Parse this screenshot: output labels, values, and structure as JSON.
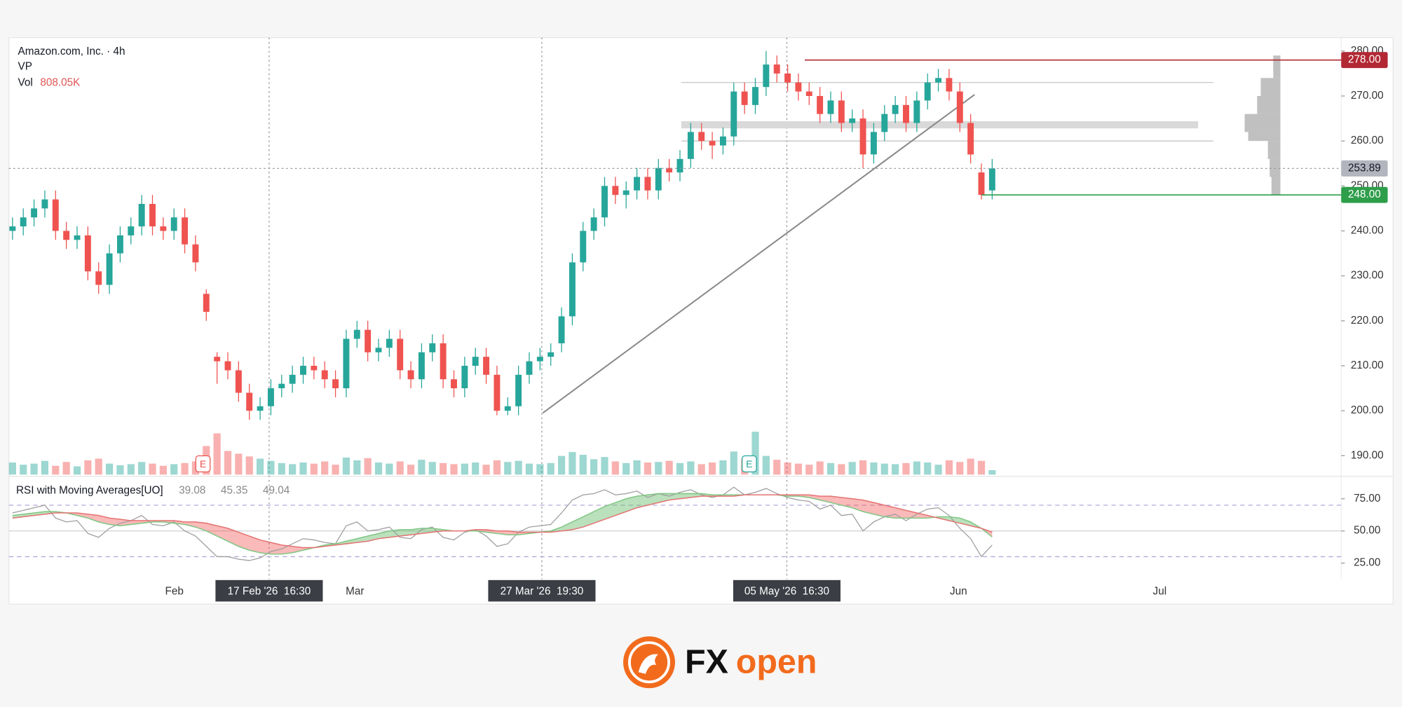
{
  "chart_data": [
    {
      "type": "candlestick",
      "title": "Amazon.com, Inc. · 4h",
      "indicator": "VP",
      "volume_name": "Vol",
      "volume_label": "808.05K",
      "open": [
        240,
        241,
        243,
        245,
        247,
        240,
        238,
        239,
        231,
        228,
        235,
        239,
        241,
        246,
        241,
        240,
        243,
        237,
        226,
        212,
        211,
        209,
        204,
        200,
        201,
        205,
        206,
        208,
        210,
        209,
        207,
        205,
        216,
        218,
        213,
        214,
        216,
        209,
        207,
        213,
        215,
        207,
        205,
        210,
        212,
        208,
        200,
        201,
        208,
        211,
        212,
        215,
        221,
        233,
        240,
        243,
        250,
        248,
        249,
        252,
        249,
        254,
        253,
        256,
        262,
        260,
        259,
        261,
        271,
        268,
        272,
        277,
        275,
        273,
        271,
        270,
        266,
        269,
        264,
        265,
        257,
        262,
        266,
        268,
        264,
        269,
        273,
        274,
        271,
        264,
        253,
        249
      ],
      "high": [
        243,
        245,
        247,
        249,
        249,
        242,
        241,
        241,
        233,
        237,
        241,
        243,
        248,
        248,
        243,
        245,
        245,
        239,
        227,
        213,
        213,
        211,
        206,
        203,
        207,
        208,
        210,
        212,
        212,
        211,
        209,
        218,
        220,
        220,
        216,
        218,
        218,
        211,
        215,
        217,
        217,
        209,
        212,
        214,
        214,
        210,
        203,
        210,
        213,
        214,
        215,
        223,
        235,
        242,
        245,
        252,
        252,
        251,
        254,
        254,
        256,
        256,
        258,
        264,
        264,
        262,
        263,
        273,
        273,
        274,
        280,
        279,
        277,
        275,
        273,
        272,
        271,
        271,
        267,
        267,
        264,
        268,
        270,
        270,
        271,
        275,
        276,
        276,
        273,
        266,
        255,
        256
      ],
      "low": [
        238,
        239,
        241,
        243,
        238,
        236,
        236,
        229,
        226,
        226,
        233,
        237,
        239,
        239,
        238,
        238,
        235,
        231,
        220,
        206,
        207,
        202,
        198,
        198,
        199,
        203,
        204,
        206,
        207,
        205,
        203,
        203,
        214,
        211,
        211,
        212,
        207,
        205,
        205,
        211,
        205,
        203,
        203,
        208,
        206,
        199,
        199,
        199,
        206,
        209,
        210,
        213,
        219,
        231,
        238,
        241,
        246,
        245,
        247,
        247,
        247,
        251,
        251,
        254,
        258,
        256,
        257,
        259,
        266,
        266,
        270,
        273,
        271,
        269,
        268,
        264,
        264,
        262,
        262,
        254,
        255,
        260,
        264,
        262,
        262,
        267,
        271,
        269,
        262,
        255,
        247,
        247
      ],
      "close": [
        241,
        243,
        245,
        247,
        240,
        238,
        239,
        231,
        228,
        235,
        239,
        241,
        246,
        241,
        240,
        243,
        237,
        233,
        222,
        211,
        209,
        204,
        200,
        201,
        205,
        206,
        208,
        210,
        209,
        207,
        205,
        216,
        218,
        213,
        214,
        216,
        209,
        207,
        213,
        215,
        207,
        205,
        210,
        212,
        208,
        200,
        201,
        208,
        211,
        212,
        213,
        221,
        233,
        240,
        243,
        250,
        248,
        249,
        252,
        249,
        254,
        253,
        256,
        262,
        260,
        259,
        261,
        271,
        268,
        272,
        277,
        275,
        273,
        271,
        270,
        266,
        269,
        264,
        265,
        257,
        262,
        266,
        268,
        264,
        269,
        273,
        274,
        271,
        264,
        257,
        248,
        253.89
      ],
      "volume": [
        2200,
        1800,
        2000,
        2500,
        1600,
        2300,
        1500,
        2600,
        2900,
        2000,
        1700,
        1900,
        2300,
        2000,
        1600,
        1900,
        2100,
        2400,
        5200,
        7500,
        4300,
        3800,
        3300,
        2900,
        2500,
        2100,
        1900,
        2200,
        2000,
        2400,
        1800,
        3100,
        2600,
        3000,
        2200,
        2000,
        2400,
        1800,
        2700,
        2300,
        2100,
        1900,
        2000,
        2200,
        1800,
        2600,
        2300,
        2500,
        2000,
        1900,
        2100,
        3400,
        4100,
        3600,
        2800,
        3200,
        2400,
        2100,
        2600,
        2200,
        2300,
        2500,
        2100,
        2400,
        1900,
        2200,
        2600,
        4200,
        2800,
        7800,
        3400,
        2700,
        2200,
        2000,
        1800,
        2400,
        2100,
        1900,
        2300,
        2600,
        2200,
        2000,
        1900,
        2100,
        2400,
        2200,
        1800,
        2600,
        2300,
        2900,
        2500,
        808.05
      ],
      "up_color": "#26a69a",
      "down_color": "#ef5350",
      "ylim": [
        185.6,
        282.4
      ],
      "yticks": [
        {
          "value": 190,
          "label": "190.00"
        },
        {
          "value": 200,
          "label": "200.00"
        },
        {
          "value": 210,
          "label": "210.00"
        },
        {
          "value": 220,
          "label": "220.00"
        },
        {
          "value": 230,
          "label": "230.00"
        },
        {
          "value": 240,
          "label": "240.00"
        },
        {
          "value": 250,
          "label": "250.00"
        },
        {
          "value": 260,
          "label": "260.00"
        },
        {
          "value": 270,
          "label": "270.00"
        },
        {
          "value": 280,
          "label": "280.00"
        }
      ],
      "month_labels": [
        "Feb",
        "Mar",
        "Jun",
        "Jul"
      ],
      "crosshair_labels": [
        "17 Feb '26  16:30",
        "27 Mar '26  19:30",
        "05 May '26  16:30"
      ],
      "earnings_markers": [
        "E",
        "E"
      ],
      "levels": [
        {
          "value": 278,
          "label": "278.00",
          "color": "#b22833"
        },
        {
          "value": 248,
          "label": "248.00",
          "color": "#2e9e4a"
        }
      ],
      "range_lines": [
        273,
        260
      ],
      "zone": [
        262.8,
        264.4
      ],
      "trendline": [
        199.5,
        270.3
      ],
      "volume_profile": {
        "bins": [
          248,
          252,
          256,
          260,
          262,
          266,
          270,
          274,
          279
        ],
        "values": [
          10,
          12,
          14,
          36,
          40,
          26,
          22,
          8
        ],
        "color": "#8c8c8c"
      }
    },
    {
      "type": "rsi",
      "title": "RSI with Moving Averages[UO]",
      "series": [
        {
          "color": "#9e9e9e",
          "values": [
            64,
            66,
            68,
            70,
            60,
            57,
            58,
            48,
            45,
            52,
            56,
            58,
            62,
            55,
            54,
            57,
            50,
            46,
            38,
            30,
            30,
            28,
            27,
            29,
            34,
            36,
            40,
            44,
            43,
            41,
            40,
            54,
            57,
            50,
            51,
            53,
            45,
            44,
            51,
            53,
            45,
            43,
            49,
            51,
            46,
            38,
            40,
            49,
            53,
            54,
            55,
            64,
            74,
            78,
            79,
            82,
            78,
            79,
            81,
            76,
            79,
            77,
            80,
            82,
            78,
            76,
            78,
            84,
            78,
            80,
            83,
            79,
            76,
            74,
            73,
            67,
            70,
            62,
            63,
            50,
            57,
            61,
            63,
            58,
            63,
            67,
            68,
            62,
            52,
            44,
            30,
            39.08
          ]
        },
        {
          "color": "#81c784",
          "values": [
            62,
            63,
            64,
            65,
            65,
            64,
            62,
            60,
            57,
            55,
            54,
            55,
            56,
            57,
            57,
            56,
            55,
            53,
            50,
            46,
            42,
            38,
            35,
            33,
            32,
            32,
            33,
            35,
            37,
            39,
            40,
            42,
            44,
            46,
            48,
            50,
            51,
            51,
            52,
            52,
            51,
            50,
            50,
            50,
            49,
            48,
            47,
            47,
            48,
            49,
            50,
            53,
            57,
            61,
            65,
            69,
            72,
            75,
            77,
            78,
            79,
            79,
            79,
            79,
            79,
            78,
            78,
            78,
            78,
            78,
            78,
            78,
            77,
            77,
            76,
            74,
            72,
            70,
            68,
            65,
            63,
            61,
            60,
            60,
            60,
            60,
            61,
            61,
            60,
            57,
            52,
            45.35
          ]
        },
        {
          "color": "#e57373",
          "values": [
            60,
            61,
            62,
            63,
            64,
            64,
            64,
            63,
            62,
            60,
            59,
            58,
            58,
            58,
            58,
            58,
            57,
            57,
            56,
            54,
            52,
            49,
            46,
            43,
            41,
            39,
            38,
            37,
            37,
            38,
            39,
            40,
            41,
            42,
            44,
            45,
            46,
            47,
            48,
            49,
            50,
            50,
            50,
            51,
            51,
            50,
            50,
            49,
            49,
            49,
            49,
            50,
            51,
            53,
            56,
            59,
            62,
            65,
            68,
            70,
            72,
            74,
            75,
            76,
            77,
            77,
            77,
            77,
            78,
            78,
            78,
            78,
            78,
            78,
            78,
            77,
            77,
            76,
            75,
            74,
            72,
            70,
            68,
            66,
            64,
            62,
            60,
            58,
            56,
            54,
            52,
            49.04
          ]
        }
      ],
      "fill_colors": [
        "rgba(102,187,106,0.45)",
        "rgba(239,83,80,0.4)"
      ],
      "ylim": [
        12.5,
        89.6
      ],
      "yticks": [
        {
          "value": 25,
          "label": "25.00"
        },
        {
          "value": 50,
          "label": "50.00"
        },
        {
          "value": 75,
          "label": "75.00"
        }
      ],
      "bands": [
        70,
        30
      ],
      "midline": 50
    }
  ],
  "footer": {
    "brand_fx": "FX",
    "brand_open": "open"
  }
}
